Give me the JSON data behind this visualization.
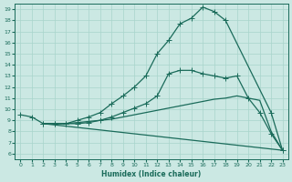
{
  "xlabel": "Humidex (Indice chaleur)",
  "bg_color": "#cbe8e3",
  "grid_color": "#a8d4cc",
  "line_color": "#1a6b5a",
  "xlim": [
    -0.5,
    23.5
  ],
  "ylim": [
    5.5,
    19.5
  ],
  "xticks": [
    0,
    1,
    2,
    3,
    4,
    5,
    6,
    7,
    8,
    9,
    10,
    11,
    12,
    13,
    14,
    15,
    16,
    17,
    18,
    19,
    20,
    21,
    22,
    23
  ],
  "yticks": [
    6,
    7,
    8,
    9,
    10,
    11,
    12,
    13,
    14,
    15,
    16,
    17,
    18,
    19
  ],
  "line1_marked": {
    "x": [
      0,
      1,
      2,
      3,
      4,
      5,
      6,
      7,
      8,
      9,
      10,
      11,
      12,
      13,
      14,
      15,
      16,
      17,
      18,
      22,
      23
    ],
    "y": [
      9.5,
      9.3,
      8.7,
      8.7,
      8.7,
      9.0,
      9.3,
      9.7,
      10.5,
      11.2,
      12.0,
      13.0,
      15.0,
      16.2,
      17.7,
      18.2,
      19.2,
      18.8,
      18.0,
      9.7,
      6.3
    ]
  },
  "line2_marked": {
    "x": [
      2,
      3,
      4,
      5,
      6,
      7,
      8,
      9,
      10,
      11,
      12,
      13,
      14,
      15,
      16,
      17,
      18,
      19,
      20,
      21,
      22,
      23
    ],
    "y": [
      8.7,
      8.7,
      8.7,
      8.7,
      8.8,
      9.0,
      9.3,
      9.7,
      10.1,
      10.5,
      11.2,
      13.2,
      13.5,
      13.5,
      13.2,
      13.0,
      12.8,
      13.0,
      11.0,
      9.7,
      7.8,
      6.3
    ]
  },
  "line3_plain": {
    "x": [
      2,
      3,
      4,
      5,
      6,
      7,
      8,
      9,
      10,
      11,
      12,
      13,
      14,
      15,
      16,
      17,
      18,
      19,
      20,
      21,
      22,
      23
    ],
    "y": [
      8.7,
      8.7,
      8.7,
      8.8,
      8.9,
      9.0,
      9.1,
      9.3,
      9.5,
      9.7,
      9.9,
      10.1,
      10.3,
      10.5,
      10.7,
      10.9,
      11.0,
      11.2,
      11.0,
      10.8,
      8.0,
      6.3
    ]
  },
  "line4_plain": {
    "x": [
      2,
      23
    ],
    "y": [
      8.7,
      6.3
    ]
  }
}
